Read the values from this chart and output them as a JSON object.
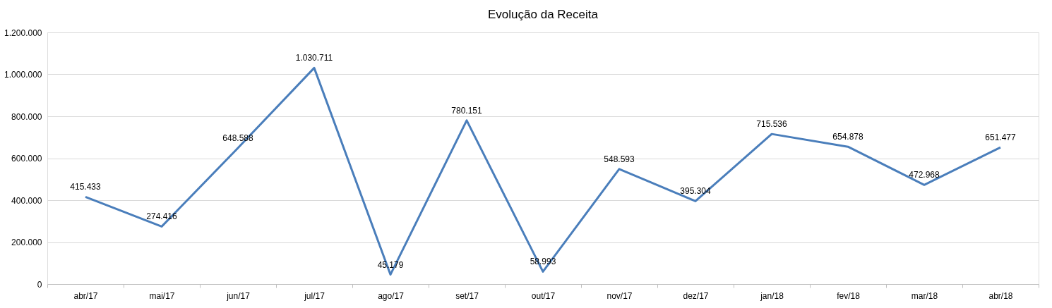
{
  "chart_data": {
    "type": "line",
    "title": "Evolução da Receita",
    "categories": [
      "abr/17",
      "mai/17",
      "jun/17",
      "jul/17",
      "ago/17",
      "set/17",
      "out/17",
      "nov/17",
      "dez/17",
      "jan/18",
      "fev/18",
      "mar/18",
      "abr/18"
    ],
    "series": [
      {
        "color": "#4a7ebb",
        "values": [
          415433,
          274416,
          648588,
          1030711,
          45179,
          780151,
          58993,
          548593,
          395304,
          715536,
          654878,
          472968,
          651477
        ],
        "value_labels": [
          "415.433",
          "274.416",
          "648.588",
          "1.030.711",
          "45.179",
          "780.151",
          "58.993",
          "548.593",
          "395.304",
          "715.536",
          "654.878",
          "472.968",
          "651.477"
        ]
      }
    ],
    "ylim": [
      0,
      1200000
    ],
    "yticks": [
      {
        "value": 0,
        "label": "0"
      },
      {
        "value": 200000,
        "label": "200.000"
      },
      {
        "value": 400000,
        "label": "400.000"
      },
      {
        "value": 600000,
        "label": "600.000"
      },
      {
        "value": 800000,
        "label": "800.000"
      },
      {
        "value": 1000000,
        "label": "1.000.000"
      },
      {
        "value": 1200000,
        "label": "1.200.000"
      }
    ],
    "grid": "y",
    "marker": "none",
    "line_style": "solid",
    "legend": false
  }
}
